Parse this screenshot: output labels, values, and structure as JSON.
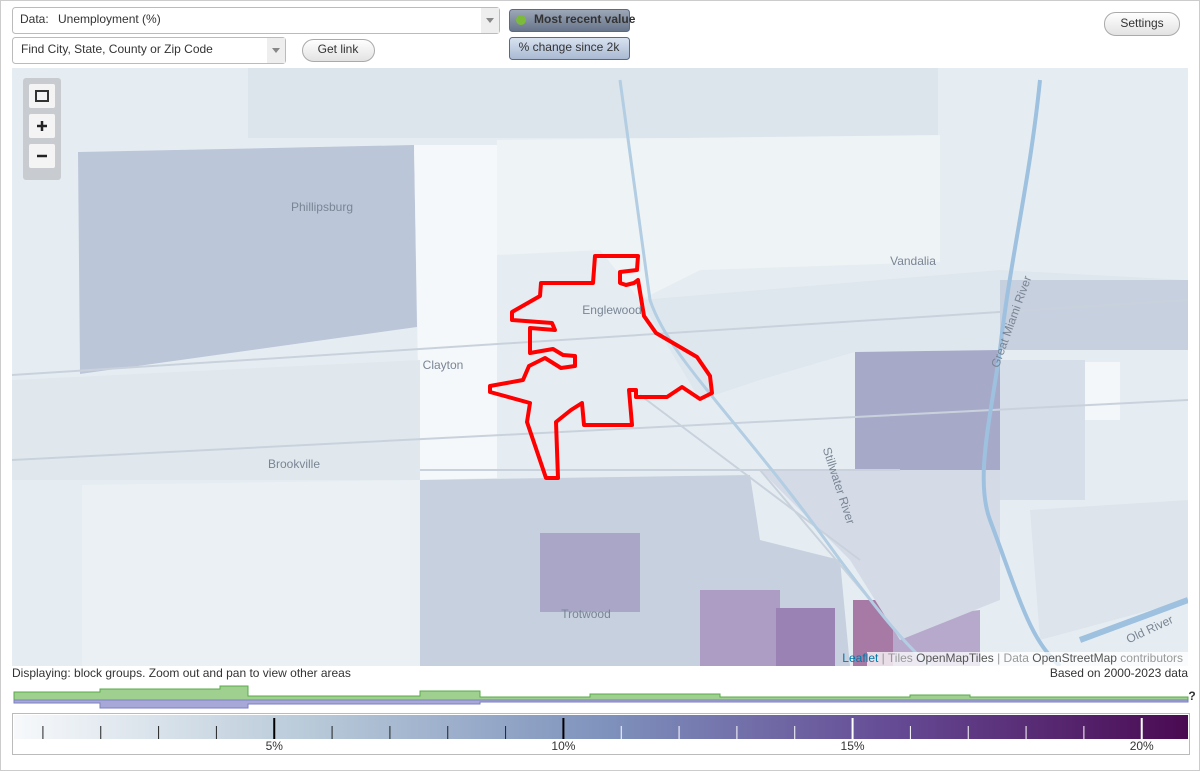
{
  "controls": {
    "data_prefix": "Data:",
    "data_value": "Unemployment (%)",
    "most_recent": "Most recent value",
    "change": "% change since 2k",
    "search_placeholder": "Find City, State, County or Zip Code",
    "get_link": "Get link",
    "settings": "Settings"
  },
  "map": {
    "labels": [
      "Phillipsburg",
      "Englewood",
      "Clayton",
      "Vandalia",
      "Brookville",
      "Trotwood",
      "Stillwater River",
      "Great Miami River",
      "Old River"
    ],
    "attribution": {
      "leaflet": "Leaflet",
      "tiles": "Tiles",
      "tiles_source": "OpenMapTiles",
      "data": "Data",
      "data_source": "OpenStreetMap",
      "contributors": "contributors"
    }
  },
  "status": {
    "displaying": "Displaying: block groups. Zoom out and pan to view other areas",
    "based_on": "Based on 2000-2023 data",
    "help": "?"
  },
  "legend": {
    "range": [
      0.5,
      20.8
    ],
    "major_ticks": [
      {
        "value": 5,
        "label": "5%"
      },
      {
        "value": 10,
        "label": "10%"
      },
      {
        "value": 15,
        "label": "15%"
      },
      {
        "value": 20,
        "label": "20%"
      }
    ],
    "minor_ticks": [
      1,
      2,
      3,
      4,
      6,
      7,
      8,
      9,
      11,
      12,
      13,
      14,
      16,
      17,
      18,
      19
    ]
  }
}
